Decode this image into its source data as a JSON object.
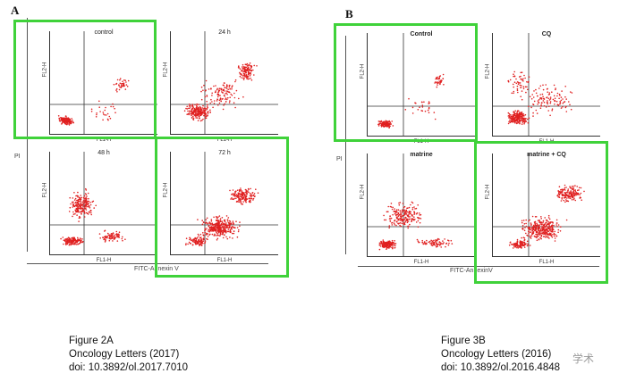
{
  "figure_a": {
    "letter": "A",
    "y_axis_label": "PI",
    "x_axis_label": "FITC-Annexin V",
    "plots": [
      {
        "title": "control",
        "x_label": "FL1-H",
        "y_label": "FL2-H"
      },
      {
        "title": "24 h",
        "x_label": "FL1-H",
        "y_label": "FL2-H"
      },
      {
        "title": "48 h",
        "x_label": "FL1-H",
        "y_label": "FL2-H"
      },
      {
        "title": "72 h",
        "x_label": "FL1-H",
        "y_label": "FL2-H"
      }
    ]
  },
  "figure_b": {
    "letter": "B",
    "y_axis_label": "PI",
    "x_axis_label": "FITC-AnnexinV",
    "plots": [
      {
        "title": "Control",
        "x_label": "FL1-H",
        "y_label": "FL2-H"
      },
      {
        "title": "CQ",
        "x_label": "FL1-H",
        "y_label": "FL2-H"
      },
      {
        "title": "matrine",
        "x_label": "FL1-H",
        "y_label": "FL2-H"
      },
      {
        "title": "matrine + CQ",
        "x_label": "FL1-H",
        "y_label": "FL2-H"
      }
    ]
  },
  "captions": {
    "left": {
      "line1": "Figure 2A",
      "line2": "Oncology Letters (2017)",
      "line3": "doi: 10.3892/ol.2017.7010"
    },
    "right": {
      "line1": "Figure 3B",
      "line2": "Oncology Letters (2016)",
      "line3": "doi: 10.3892/ol.2016.4848"
    }
  },
  "watermark": "学术",
  "colors": {
    "dots": "#e02020",
    "highlight": "#3fd23a"
  }
}
